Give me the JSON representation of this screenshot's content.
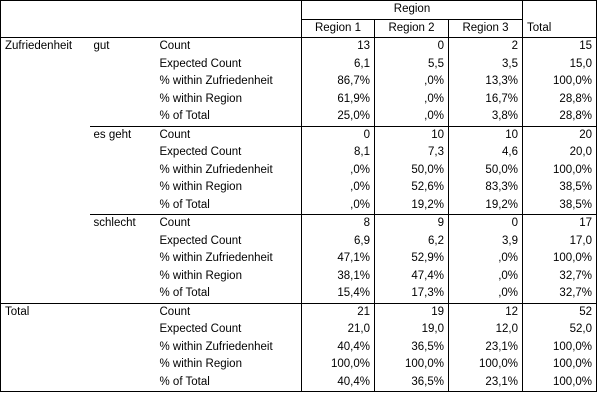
{
  "header": {
    "group": "Region",
    "columns": [
      "Region 1",
      "Region 2",
      "Region 3"
    ],
    "total": "Total"
  },
  "row_variable": "Zufriedenheit",
  "groups": [
    {
      "label": "gut",
      "rows": [
        {
          "stat": "Count",
          "values": [
            "13",
            "0",
            "2",
            "15"
          ]
        },
        {
          "stat": "Expected Count",
          "values": [
            "6,1",
            "5,5",
            "3,5",
            "15,0"
          ]
        },
        {
          "stat": "% within Zufriedenheit",
          "values": [
            "86,7%",
            ",0%",
            "13,3%",
            "100,0%"
          ]
        },
        {
          "stat": "% within Region",
          "values": [
            "61,9%",
            ",0%",
            "16,7%",
            "28,8%"
          ]
        },
        {
          "stat": "% of Total",
          "values": [
            "25,0%",
            ",0%",
            "3,8%",
            "28,8%"
          ]
        }
      ]
    },
    {
      "label": "es geht",
      "rows": [
        {
          "stat": "Count",
          "values": [
            "0",
            "10",
            "10",
            "20"
          ]
        },
        {
          "stat": "Expected Count",
          "values": [
            "8,1",
            "7,3",
            "4,6",
            "20,0"
          ]
        },
        {
          "stat": "% within Zufriedenheit",
          "values": [
            ",0%",
            "50,0%",
            "50,0%",
            "100,0%"
          ]
        },
        {
          "stat": "% within Region",
          "values": [
            ",0%",
            "52,6%",
            "83,3%",
            "38,5%"
          ]
        },
        {
          "stat": "% of Total",
          "values": [
            ",0%",
            "19,2%",
            "19,2%",
            "38,5%"
          ]
        }
      ]
    },
    {
      "label": "schlecht",
      "rows": [
        {
          "stat": "Count",
          "values": [
            "8",
            "9",
            "0",
            "17"
          ]
        },
        {
          "stat": "Expected Count",
          "values": [
            "6,9",
            "6,2",
            "3,9",
            "17,0"
          ]
        },
        {
          "stat": "% within Zufriedenheit",
          "values": [
            "47,1%",
            "52,9%",
            ",0%",
            "100,0%"
          ]
        },
        {
          "stat": "% within Region",
          "values": [
            "38,1%",
            "47,4%",
            ",0%",
            "32,7%"
          ]
        },
        {
          "stat": "% of Total",
          "values": [
            "15,4%",
            "17,3%",
            ",0%",
            "32,7%"
          ]
        }
      ]
    }
  ],
  "total": {
    "label": "Total",
    "rows": [
      {
        "stat": "Count",
        "values": [
          "21",
          "19",
          "12",
          "52"
        ]
      },
      {
        "stat": "Expected Count",
        "values": [
          "21,0",
          "19,0",
          "12,0",
          "52,0"
        ]
      },
      {
        "stat": "% within Zufriedenheit",
        "values": [
          "40,4%",
          "36,5%",
          "23,1%",
          "100,0%"
        ]
      },
      {
        "stat": "% within Region",
        "values": [
          "100,0%",
          "100,0%",
          "100,0%",
          "100,0%"
        ]
      },
      {
        "stat": "% of Total",
        "values": [
          "40,4%",
          "36,5%",
          "23,1%",
          "100,0%"
        ]
      }
    ]
  }
}
